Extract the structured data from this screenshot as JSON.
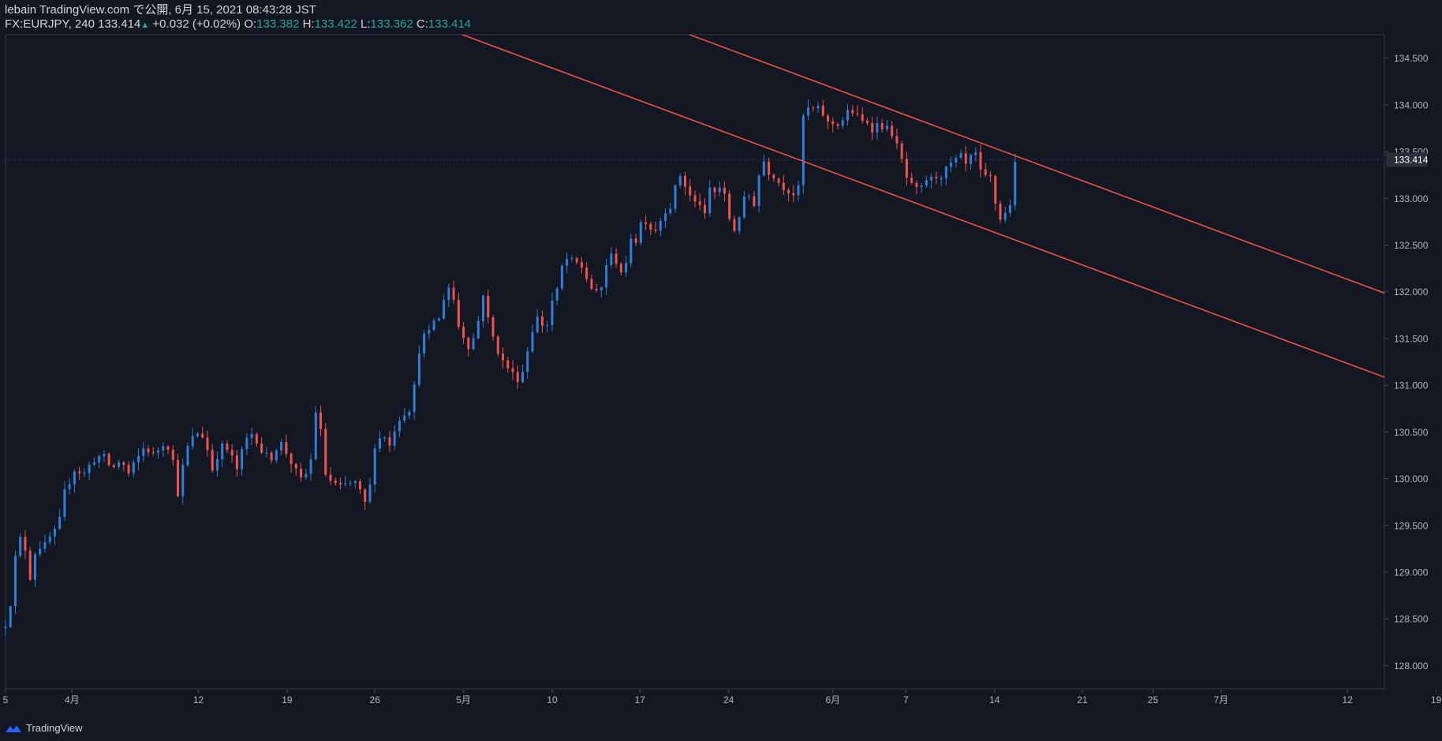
{
  "header": {
    "line1": "lebain TradingView.com で公開, 6月 15, 2021 08:43:28 JST",
    "symbol_interval": "FX:EURJPY, 240",
    "last": "133.414",
    "arrow": "▲",
    "change": "+0.032 (+0.02%)",
    "o_label": "O:",
    "o": "133.382",
    "h_label": "H:",
    "h": "133.422",
    "l_label": "L:",
    "l": "133.362",
    "c_label": "C:",
    "c": "133.414"
  },
  "chart_data": {
    "type": "candlestick",
    "title": "FX:EURJPY, 240",
    "ylim": [
      127.75,
      134.75
    ],
    "y_ticks": [
      "128.000",
      "128.500",
      "129.000",
      "129.500",
      "130.000",
      "130.500",
      "131.000",
      "131.500",
      "132.000",
      "132.500",
      "133.000",
      "133.500",
      "134.000",
      "134.500"
    ],
    "x_range": [
      0,
      1680
    ],
    "x_ticks": [
      {
        "x": 0,
        "label": "5"
      },
      {
        "x": 81,
        "label": "4月"
      },
      {
        "x": 235,
        "label": "12"
      },
      {
        "x": 343,
        "label": "19"
      },
      {
        "x": 450,
        "label": "26"
      },
      {
        "x": 558,
        "label": "5月"
      },
      {
        "x": 666,
        "label": "10"
      },
      {
        "x": 773,
        "label": "17"
      },
      {
        "x": 881,
        "label": "24"
      },
      {
        "x": 1008,
        "label": "6月"
      },
      {
        "x": 1097,
        "label": "7"
      },
      {
        "x": 1205,
        "label": "14"
      },
      {
        "x": 1312,
        "label": "21"
      },
      {
        "x": 1398,
        "label": "25"
      },
      {
        "x": 1481,
        "label": "7月"
      },
      {
        "x": 1635,
        "label": "12"
      },
      {
        "x": 1743,
        "label": "19"
      }
    ],
    "last_price": "133.414",
    "last_price_value": 133.414,
    "up_color": "#2f7fd9",
    "down_color": "#ef5350",
    "trendline_color": "#f05048",
    "trendlines": [
      {
        "x1": 803,
        "y1": 134.85,
        "x2": 1740,
        "y2": 131.79
      },
      {
        "x1": 523,
        "y1": 134.86,
        "x2": 1740,
        "y2": 130.89
      }
    ],
    "anchors": [
      [
        0,
        128.45
      ],
      [
        8,
        128.75
      ],
      [
        14,
        129.35
      ],
      [
        22,
        129.35
      ],
      [
        30,
        128.95
      ],
      [
        38,
        129.3
      ],
      [
        46,
        129.25
      ],
      [
        56,
        129.4
      ],
      [
        64,
        129.45
      ],
      [
        72,
        129.85
      ],
      [
        84,
        130.1
      ],
      [
        96,
        130.05
      ],
      [
        106,
        130.2
      ],
      [
        118,
        130.25
      ],
      [
        130,
        130.1
      ],
      [
        140,
        130.2
      ],
      [
        150,
        130.05
      ],
      [
        160,
        130.2
      ],
      [
        170,
        130.35
      ],
      [
        180,
        130.25
      ],
      [
        194,
        130.4
      ],
      [
        202,
        130.3
      ],
      [
        210,
        129.85
      ],
      [
        220,
        130.3
      ],
      [
        232,
        130.5
      ],
      [
        242,
        130.45
      ],
      [
        252,
        130.1
      ],
      [
        262,
        130.35
      ],
      [
        272,
        130.3
      ],
      [
        282,
        130.1
      ],
      [
        292,
        130.4
      ],
      [
        302,
        130.5
      ],
      [
        312,
        130.3
      ],
      [
        322,
        130.2
      ],
      [
        334,
        130.4
      ],
      [
        344,
        130.25
      ],
      [
        352,
        130.1
      ],
      [
        362,
        129.95
      ],
      [
        372,
        130.2
      ],
      [
        380,
        130.9
      ],
      [
        384,
        130.5
      ],
      [
        390,
        130.05
      ],
      [
        398,
        129.95
      ],
      [
        408,
        129.9
      ],
      [
        418,
        129.95
      ],
      [
        428,
        129.95
      ],
      [
        436,
        129.75
      ],
      [
        442,
        129.7
      ],
      [
        448,
        130.35
      ],
      [
        454,
        130.4
      ],
      [
        460,
        130.5
      ],
      [
        468,
        130.35
      ],
      [
        476,
        130.6
      ],
      [
        484,
        130.7
      ],
      [
        492,
        130.75
      ],
      [
        500,
        131.05
      ],
      [
        506,
        131.55
      ],
      [
        514,
        131.5
      ],
      [
        522,
        131.7
      ],
      [
        530,
        131.7
      ],
      [
        536,
        132.05
      ],
      [
        544,
        132.05
      ],
      [
        550,
        131.65
      ],
      [
        556,
        131.6
      ],
      [
        562,
        131.4
      ],
      [
        570,
        131.5
      ],
      [
        578,
        131.75
      ],
      [
        584,
        132.1
      ],
      [
        588,
        131.7
      ],
      [
        596,
        131.45
      ],
      [
        606,
        131.25
      ],
      [
        616,
        131.15
      ],
      [
        622,
        131.05
      ],
      [
        630,
        131.15
      ],
      [
        638,
        131.45
      ],
      [
        646,
        131.75
      ],
      [
        652,
        131.65
      ],
      [
        660,
        131.65
      ],
      [
        666,
        131.9
      ],
      [
        672,
        132.0
      ],
      [
        680,
        132.35
      ],
      [
        686,
        132.35
      ],
      [
        692,
        132.3
      ],
      [
        700,
        132.3
      ],
      [
        708,
        132.15
      ],
      [
        716,
        132.0
      ],
      [
        724,
        131.95
      ],
      [
        732,
        132.3
      ],
      [
        740,
        132.4
      ],
      [
        746,
        132.3
      ],
      [
        754,
        132.15
      ],
      [
        762,
        132.6
      ],
      [
        768,
        132.55
      ],
      [
        776,
        132.8
      ],
      [
        782,
        132.75
      ],
      [
        788,
        132.65
      ],
      [
        796,
        132.7
      ],
      [
        802,
        132.9
      ],
      [
        808,
        132.85
      ],
      [
        814,
        133.05
      ],
      [
        822,
        133.25
      ],
      [
        830,
        133.1
      ],
      [
        838,
        132.95
      ],
      [
        846,
        132.95
      ],
      [
        852,
        132.8
      ],
      [
        858,
        133.1
      ],
      [
        866,
        133.05
      ],
      [
        872,
        133.15
      ],
      [
        878,
        132.95
      ],
      [
        884,
        132.7
      ],
      [
        890,
        132.65
      ],
      [
        896,
        132.9
      ],
      [
        904,
        133.05
      ],
      [
        912,
        132.95
      ],
      [
        918,
        133.25
      ],
      [
        922,
        133.45
      ],
      [
        928,
        133.3
      ],
      [
        936,
        133.25
      ],
      [
        944,
        133.15
      ],
      [
        952,
        133.1
      ],
      [
        960,
        133.05
      ],
      [
        966,
        133.1
      ],
      [
        970,
        133.85
      ],
      [
        978,
        133.95
      ],
      [
        986,
        133.95
      ],
      [
        994,
        133.95
      ],
      [
        1000,
        133.8
      ],
      [
        1006,
        133.8
      ],
      [
        1014,
        133.8
      ],
      [
        1022,
        133.85
      ],
      [
        1028,
        133.95
      ],
      [
        1036,
        133.9
      ],
      [
        1042,
        133.8
      ],
      [
        1048,
        133.85
      ],
      [
        1056,
        133.75
      ],
      [
        1064,
        133.8
      ],
      [
        1072,
        133.75
      ],
      [
        1080,
        133.7
      ],
      [
        1088,
        133.5
      ],
      [
        1094,
        133.35
      ],
      [
        1100,
        133.15
      ],
      [
        1108,
        133.1
      ],
      [
        1114,
        133.05
      ],
      [
        1120,
        133.2
      ],
      [
        1128,
        133.2
      ],
      [
        1136,
        133.25
      ],
      [
        1142,
        133.25
      ],
      [
        1150,
        133.35
      ],
      [
        1158,
        133.4
      ],
      [
        1166,
        133.45
      ],
      [
        1172,
        133.3
      ],
      [
        1180,
        133.55
      ],
      [
        1186,
        133.3
      ],
      [
        1192,
        133.2
      ],
      [
        1198,
        133.25
      ],
      [
        1204,
        133.15
      ],
      [
        1208,
        132.75
      ],
      [
        1214,
        132.8
      ],
      [
        1220,
        132.85
      ],
      [
        1226,
        133.0
      ],
      [
        1230,
        133.35
      ],
      [
        1234,
        133.42
      ]
    ]
  }
}
